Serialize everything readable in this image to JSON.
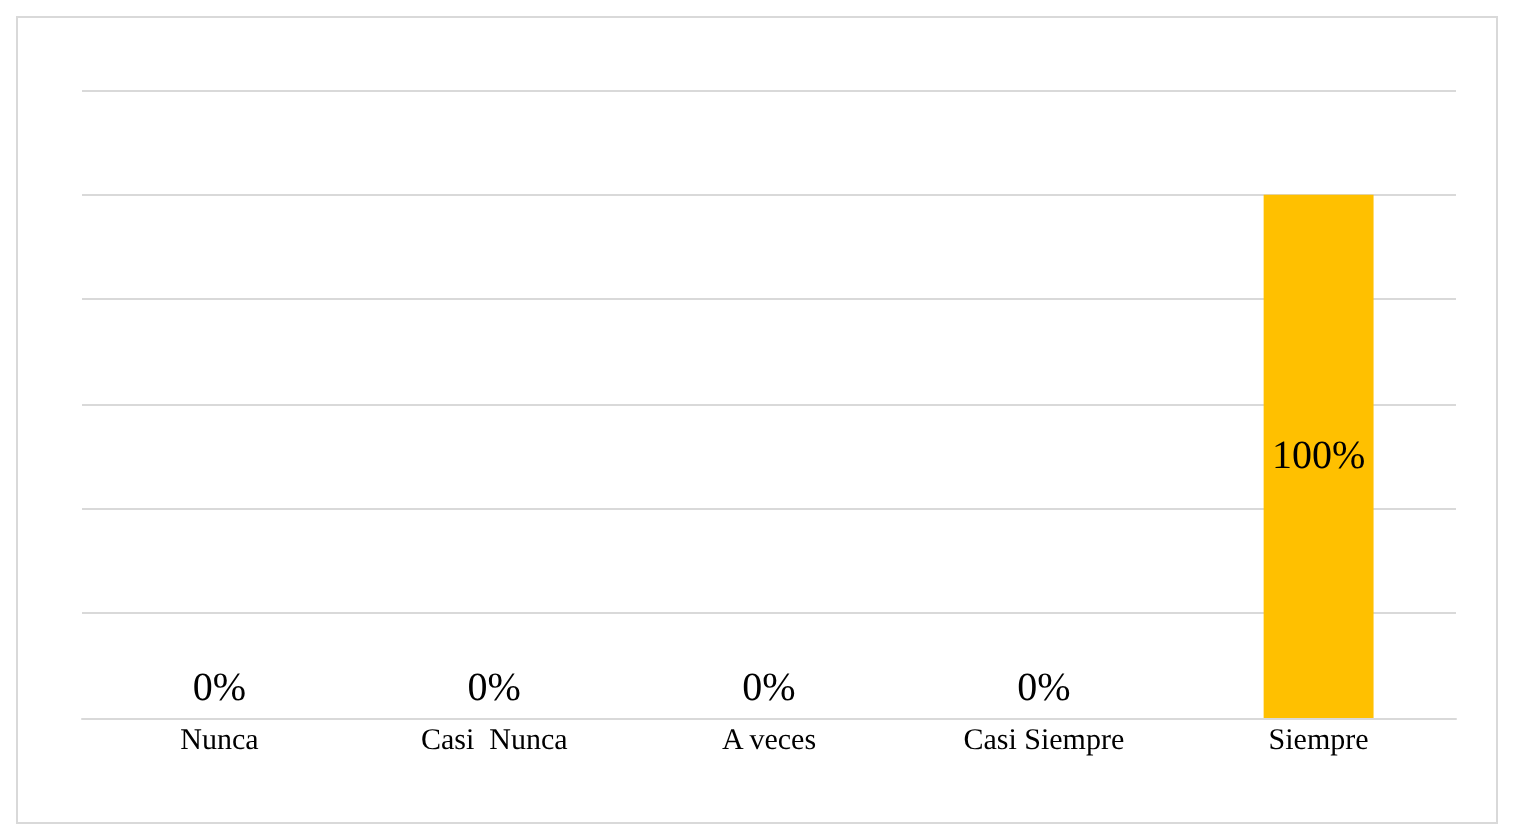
{
  "chart_data": {
    "type": "bar",
    "categories": [
      "Nunca",
      "Casi  Nunca",
      "A veces",
      "Casi Siempre",
      "Siempre"
    ],
    "values": [
      0,
      0,
      0,
      0,
      100
    ],
    "value_labels": [
      "0%",
      "0%",
      "0%",
      "0%",
      "100%"
    ],
    "color": "#ffc000",
    "ylim": [
      0,
      120
    ],
    "yticks": [
      {
        "value": 0,
        "label": null
      },
      {
        "value": 20,
        "label": null
      },
      {
        "value": 40,
        "label": null
      },
      {
        "value": 60,
        "label": null
      },
      {
        "value": 80,
        "label": null
      },
      {
        "value": 100,
        "label": null
      },
      {
        "value": 120,
        "label": null
      }
    ],
    "grid": "y",
    "tick_labels": "x"
  }
}
